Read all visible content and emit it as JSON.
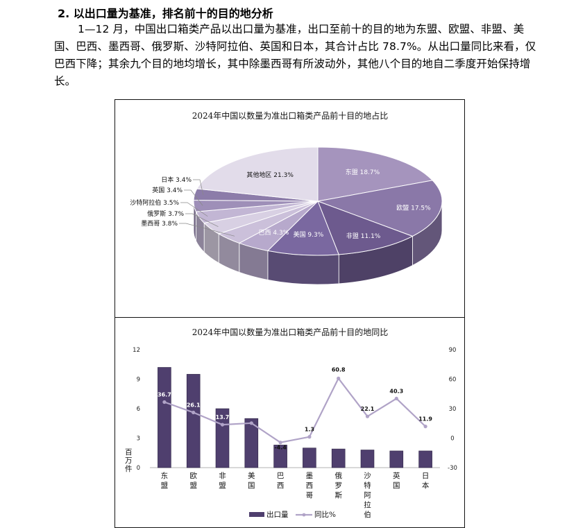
{
  "document": {
    "heading": "2. 以出口量为基准，排名前十的目的地分析",
    "paragraph": "1—12 月，中国出口箱类产品以出口量为基准，出口至前十的目的地为东盟、欧盟、非盟、美国、巴西、墨西哥、俄罗斯、沙特阿拉伯、英国和日本，其合计占比 78.7%。从出口量同比来看，仅巴西下降；其余九个目的地均增长，其中除墨西哥有所波动外，其他八个目的地自二季度开始保持增长。"
  },
  "colors": {
    "pie_slices": [
      "#a594bd",
      "#8a78a8",
      "#6d5a8e",
      "#7a68a0",
      "#b7a9cc",
      "#cbc0da",
      "#d8d0e3",
      "#c2b6d4",
      "#9e8fb8",
      "#8c7ca9",
      "#e2dcea"
    ],
    "bar": "#4f3f6e",
    "line": "#b0a3c7"
  },
  "chart_data": [
    {
      "type": "pie",
      "title": "2024年中国以数量为准出口箱类产品前十目的地占比",
      "labels": [
        "东盟 18.7%",
        "欧盟 17.5%",
        "非盟 11.1%",
        "美国 9.3%",
        "巴西 4.3%",
        "墨西哥 3.8%",
        "俄罗斯 3.7%",
        "沙特阿拉伯 3.5%",
        "英国 3.4%",
        "日本 3.4%",
        "其他地区 21.3%"
      ],
      "values": [
        18.7,
        17.5,
        11.1,
        9.3,
        4.3,
        3.8,
        3.7,
        3.5,
        3.4,
        3.4,
        21.3
      ],
      "style": "3d"
    },
    {
      "type": "bar",
      "title": "2024年中国以数量为准出口箱类产品前十目的地同比",
      "categories": [
        "东盟",
        "欧盟",
        "非盟",
        "美国",
        "巴西",
        "墨西哥",
        "俄罗斯",
        "沙特阿拉伯",
        "英国",
        "日本"
      ],
      "series": [
        {
          "name": "出口量",
          "type": "bar",
          "axis": "left",
          "values": [
            10.2,
            9.5,
            6.0,
            5.0,
            2.3,
            2.0,
            1.9,
            1.8,
            1.7,
            1.7
          ]
        },
        {
          "name": "同比%",
          "type": "line",
          "axis": "right",
          "values": [
            36.7,
            26.1,
            13.7,
            15.3,
            -4.4,
            1.3,
            60.8,
            22.1,
            40.3,
            11.9
          ]
        }
      ],
      "ylabel": "百万件",
      "yticks_left": [
        "0",
        "3",
        "6",
        "9",
        "12"
      ],
      "yticks_right": [
        "-30",
        "0",
        "30",
        "60",
        "90"
      ],
      "ylim_left": [
        0,
        12
      ],
      "ylim_right": [
        -30,
        90
      ],
      "grid": false,
      "legend": "bottom"
    }
  ]
}
